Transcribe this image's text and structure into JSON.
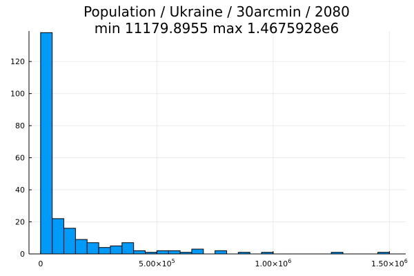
{
  "chart_data": {
    "type": "bar",
    "title": "Population / Ukraine / 30arcmin / 2080",
    "subtitle": "min 11179.8955  max 1.4675928e6",
    "xlabel": "",
    "ylabel": "",
    "bar_color": "#009af9",
    "bin_width": 50000,
    "bins": [
      {
        "start": 0,
        "end": 50000,
        "count": 138
      },
      {
        "start": 50000,
        "end": 100000,
        "count": 22
      },
      {
        "start": 100000,
        "end": 150000,
        "count": 16
      },
      {
        "start": 150000,
        "end": 200000,
        "count": 9
      },
      {
        "start": 200000,
        "end": 250000,
        "count": 7
      },
      {
        "start": 250000,
        "end": 300000,
        "count": 4
      },
      {
        "start": 300000,
        "end": 350000,
        "count": 5
      },
      {
        "start": 350000,
        "end": 400000,
        "count": 7
      },
      {
        "start": 400000,
        "end": 450000,
        "count": 2
      },
      {
        "start": 450000,
        "end": 500000,
        "count": 1
      },
      {
        "start": 500000,
        "end": 550000,
        "count": 2
      },
      {
        "start": 550000,
        "end": 600000,
        "count": 2
      },
      {
        "start": 600000,
        "end": 650000,
        "count": 1
      },
      {
        "start": 650000,
        "end": 700000,
        "count": 3
      },
      {
        "start": 700000,
        "end": 750000,
        "count": 0
      },
      {
        "start": 750000,
        "end": 800000,
        "count": 2
      },
      {
        "start": 800000,
        "end": 850000,
        "count": 0
      },
      {
        "start": 850000,
        "end": 900000,
        "count": 1
      },
      {
        "start": 900000,
        "end": 950000,
        "count": 0
      },
      {
        "start": 950000,
        "end": 1000000,
        "count": 1
      },
      {
        "start": 1000000,
        "end": 1050000,
        "count": 0
      },
      {
        "start": 1050000,
        "end": 1100000,
        "count": 0
      },
      {
        "start": 1100000,
        "end": 1150000,
        "count": 0
      },
      {
        "start": 1150000,
        "end": 1200000,
        "count": 0
      },
      {
        "start": 1200000,
        "end": 1250000,
        "count": 0
      },
      {
        "start": 1250000,
        "end": 1300000,
        "count": 1
      },
      {
        "start": 1300000,
        "end": 1350000,
        "count": 0
      },
      {
        "start": 1350000,
        "end": 1400000,
        "count": 0
      },
      {
        "start": 1400000,
        "end": 1450000,
        "count": 0
      },
      {
        "start": 1450000,
        "end": 1500000,
        "count": 1
      }
    ],
    "xlim": [
      -50000,
      1570000
    ],
    "ylim": [
      0,
      139
    ],
    "x_ticks": [
      {
        "value": 0,
        "mantissa": "0",
        "exponent": ""
      },
      {
        "value": 500000,
        "mantissa": "5.00×10",
        "exponent": "5"
      },
      {
        "value": 1000000,
        "mantissa": "1.00×10",
        "exponent": "6"
      },
      {
        "value": 1500000,
        "mantissa": "1.50×10",
        "exponent": "6"
      }
    ],
    "y_ticks": [
      0,
      20,
      40,
      60,
      80,
      100,
      120
    ],
    "grid": true,
    "legend": "none"
  }
}
